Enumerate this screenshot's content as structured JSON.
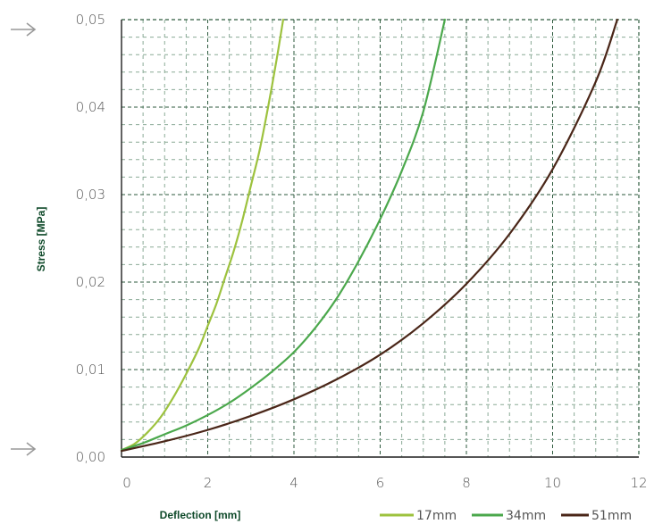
{
  "chart_data": {
    "type": "line",
    "xlabel": "Deflection [mm]",
    "ylabel": "Stress [MPa]",
    "xlim": [
      0,
      12
    ],
    "ylim": [
      0,
      0.05
    ],
    "x_ticks": [
      0,
      2,
      4,
      6,
      8,
      10,
      12
    ],
    "x_tick_labels": [
      "0",
      "2",
      "4",
      "6",
      "8",
      "10",
      "12"
    ],
    "y_ticks": [
      0,
      0.01,
      0.02,
      0.03,
      0.04,
      0.05
    ],
    "y_tick_labels": [
      "0,00",
      "0,01",
      "0,02",
      "0,03",
      "0,04",
      "0,05"
    ],
    "grid": true,
    "legend_position": "bottom-right",
    "series": [
      {
        "name": "17mm",
        "color": "#9dc23e",
        "x": [
          0,
          0.3,
          0.6,
          0.9,
          1.2,
          1.5,
          1.8,
          2.0,
          2.2,
          2.4,
          2.6,
          2.8,
          3.0,
          3.2,
          3.4,
          3.6,
          3.75
        ],
        "y": [
          0.0008,
          0.0015,
          0.0028,
          0.0045,
          0.0068,
          0.0095,
          0.0125,
          0.015,
          0.0175,
          0.0205,
          0.0235,
          0.027,
          0.031,
          0.035,
          0.04,
          0.0455,
          0.05
        ]
      },
      {
        "name": "34mm",
        "color": "#4ba84c",
        "x": [
          0,
          0.5,
          1.0,
          1.5,
          2.0,
          2.5,
          3.0,
          3.5,
          4.0,
          4.5,
          5.0,
          5.5,
          6.0,
          6.5,
          7.0,
          7.5
        ],
        "y": [
          0.0008,
          0.0016,
          0.0026,
          0.0036,
          0.0048,
          0.0062,
          0.0079,
          0.0098,
          0.012,
          0.0148,
          0.0182,
          0.0224,
          0.0272,
          0.0327,
          0.0395,
          0.05
        ]
      },
      {
        "name": "51mm",
        "color": "#4a2618",
        "x": [
          0,
          1,
          2,
          3,
          4,
          5,
          6,
          7,
          8,
          9,
          10,
          11,
          11.5
        ],
        "y": [
          0.0007,
          0.0018,
          0.0031,
          0.0047,
          0.0066,
          0.0089,
          0.0117,
          0.0153,
          0.0198,
          0.0255,
          0.0329,
          0.0429,
          0.05
        ]
      }
    ]
  },
  "decor": {
    "grid_major_color": "#2d5a3d",
    "grid_minor_color": "#8aaa96",
    "arrow_color": "#999999"
  }
}
